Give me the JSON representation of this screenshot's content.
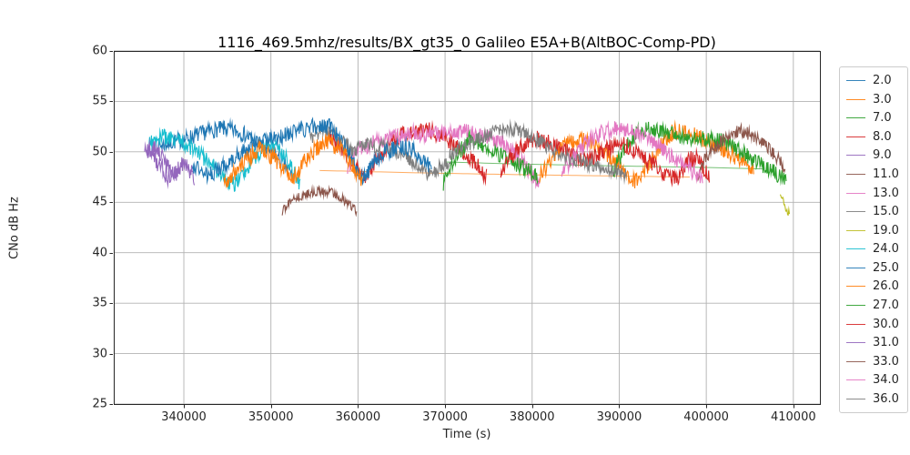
{
  "chart_data": {
    "type": "line",
    "title": "1116_469.5mhz/results/BX_gt35_0 Galileo E5A+B(AltBOC-Comp-PD)",
    "xlabel": "Time (s)",
    "ylabel": "CNo dB Hz",
    "xlim": [
      331950,
      413050
    ],
    "ylim": [
      25,
      60
    ],
    "xticks": [
      340000,
      350000,
      360000,
      370000,
      380000,
      390000,
      400000,
      410000
    ],
    "yticks": [
      25,
      30,
      35,
      40,
      45,
      50,
      55,
      60
    ],
    "grid": true,
    "grid_color": "#b2b2b2",
    "axis_color": "#262626",
    "legend_position": "outside-right",
    "series": [
      {
        "name": "2.0",
        "color": "#1f77b4",
        "style": "noisy",
        "noise": 0.8,
        "segments": [
          [
            [
              337000,
              50.6
            ],
            [
              338800,
              51.2
            ],
            [
              340800,
              51.6
            ],
            [
              342800,
              51.9
            ],
            [
              344800,
              52.1
            ],
            [
              346800,
              51.8
            ],
            [
              348600,
              51.1
            ],
            [
              350300,
              50.0
            ],
            [
              351700,
              48.6
            ],
            [
              352700,
              47.3
            ]
          ]
        ]
      },
      {
        "name": "3.0",
        "color": "#ff7f0e",
        "style": "smooth",
        "noise": 0.0,
        "segments": [
          [
            [
              355600,
              48.15
            ],
            [
              368000,
              47.9
            ],
            [
              380000,
              47.72
            ],
            [
              390000,
              47.6
            ],
            [
              398500,
              47.5
            ]
          ]
        ]
      },
      {
        "name": "7.0",
        "color": "#2ca02c",
        "style": "smooth",
        "noise": 0.0,
        "segments": [
          [
            [
              370000,
              49.0
            ],
            [
              378000,
              48.8
            ],
            [
              390000,
              48.6
            ],
            [
              400000,
              48.45
            ],
            [
              406800,
              48.3
            ]
          ]
        ]
      },
      {
        "name": "8.0",
        "color": "#d62728",
        "style": "noisy",
        "noise": 0.8,
        "segments": [
          [
            [
              356500,
              51.4
            ],
            [
              358300,
              50.2
            ],
            [
              359900,
              48.4
            ],
            [
              360700,
              47.3
            ],
            [
              362000,
              49.4
            ],
            [
              364000,
              51.1
            ],
            [
              366000,
              51.9
            ],
            [
              368000,
              52.1
            ],
            [
              370000,
              51.5
            ],
            [
              372000,
              50.3
            ],
            [
              373600,
              48.8
            ],
            [
              374800,
              47.4
            ]
          ]
        ]
      },
      {
        "name": "9.0",
        "color": "#9467bd",
        "style": "noisy",
        "noise": 0.95,
        "segments": [
          [
            [
              335500,
              50.3
            ],
            [
              336300,
              49.8
            ],
            [
              337200,
              48.9
            ],
            [
              338000,
              47.9
            ],
            [
              338700,
              47.5
            ],
            [
              339500,
              48.6
            ],
            [
              340100,
              48.9
            ],
            [
              340800,
              47.9
            ],
            [
              341300,
              47.4
            ]
          ]
        ]
      },
      {
        "name": "11.0",
        "color": "#8c564b",
        "style": "noisy",
        "noise": 0.45,
        "segments": [
          [
            [
              351300,
              43.9
            ],
            [
              352300,
              45.1
            ],
            [
              353800,
              45.8
            ],
            [
              355300,
              46.3
            ],
            [
              356800,
              46.2
            ],
            [
              358100,
              45.5
            ],
            [
              359200,
              44.5
            ],
            [
              359900,
              43.9
            ]
          ]
        ]
      },
      {
        "name": "13.0",
        "color": "#e377c2",
        "style": "noisy",
        "noise": 0.8,
        "segments": [
          [
            [
              358800,
              48.3
            ],
            [
              360000,
              50.1
            ],
            [
              362000,
              51.2
            ],
            [
              364000,
              51.7
            ],
            [
              366000,
              51.9
            ],
            [
              368000,
              51.4
            ],
            [
              370000,
              51.7
            ],
            [
              372200,
              52.2
            ],
            [
              374200,
              51.8
            ],
            [
              376200,
              51.0
            ],
            [
              377800,
              49.8
            ],
            [
              379300,
              48.3
            ],
            [
              380900,
              46.9
            ]
          ]
        ]
      },
      {
        "name": "15.0",
        "color": "#7f7f7f",
        "style": "noisy",
        "noise": 0.7,
        "segments": [
          [
            [
              354500,
              51.2
            ],
            [
              356000,
              51.9
            ],
            [
              357800,
              51.4
            ],
            [
              359500,
              50.3
            ],
            [
              361200,
              50.9
            ],
            [
              363000,
              50.5
            ],
            [
              364800,
              49.7
            ],
            [
              366500,
              48.6
            ],
            [
              368200,
              47.8
            ],
            [
              369600,
              48.8
            ],
            [
              370800,
              49.5
            ]
          ]
        ]
      },
      {
        "name": "19.0",
        "color": "#bcbd22",
        "style": "noisy",
        "noise": 0.5,
        "segments": [
          [
            [
              408500,
              45.8
            ],
            [
              408900,
              45.3
            ],
            [
              409300,
              44.3
            ],
            [
              409600,
              43.7
            ]
          ]
        ]
      },
      {
        "name": "24.0",
        "color": "#17becf",
        "style": "noisy",
        "noise": 0.8,
        "segments": [
          [
            [
              336000,
              50.9
            ],
            [
              337600,
              51.5
            ],
            [
              339200,
              51.1
            ],
            [
              341200,
              50.1
            ],
            [
              343200,
              48.8
            ],
            [
              344800,
              47.5
            ],
            [
              345800,
              47.0
            ],
            [
              347000,
              48.2
            ],
            [
              348600,
              49.8
            ],
            [
              350000,
              50.5
            ],
            [
              351300,
              49.8
            ],
            [
              352400,
              48.3
            ],
            [
              353400,
              46.9
            ]
          ]
        ]
      },
      {
        "name": "25.0",
        "color": "#1f77b4",
        "style": "noisy",
        "noise": 0.8,
        "segments": [
          [
            [
              341000,
              48.9
            ],
            [
              343000,
              47.9
            ],
            [
              345000,
              48.8
            ],
            [
              347500,
              50.2
            ],
            [
              350000,
              51.3
            ],
            [
              352500,
              52.1
            ],
            [
              355000,
              52.6
            ],
            [
              356800,
              52.3
            ],
            [
              358300,
              50.8
            ],
            [
              359800,
              48.2
            ],
            [
              360600,
              47.3
            ],
            [
              361800,
              49.0
            ],
            [
              363200,
              50.2
            ],
            [
              364800,
              50.6
            ],
            [
              366300,
              50.0
            ],
            [
              367500,
              49.0
            ],
            [
              368500,
              48.1
            ]
          ]
        ]
      },
      {
        "name": "26.0",
        "color": "#ff7f0e",
        "style": "noisy",
        "noise": 0.85,
        "segments": [
          [
            [
              344600,
              46.4
            ],
            [
              345600,
              47.6
            ],
            [
              347000,
              49.2
            ],
            [
              348800,
              50.4
            ],
            [
              350400,
              49.6
            ],
            [
              351600,
              48.3
            ],
            [
              352600,
              47.2
            ],
            [
              353800,
              48.8
            ],
            [
              355200,
              50.1
            ],
            [
              356600,
              51.0
            ],
            [
              358000,
              50.3
            ],
            [
              359300,
              48.9
            ],
            [
              360500,
              47.4
            ]
          ],
          [
            [
              380800,
              47.6
            ],
            [
              382300,
              49.3
            ],
            [
              384000,
              50.6
            ],
            [
              386000,
              51.2
            ],
            [
              388000,
              50.4
            ],
            [
              389800,
              49.2
            ],
            [
              391300,
              47.6
            ],
            [
              392300,
              46.9
            ],
            [
              393300,
              48.6
            ],
            [
              394800,
              50.6
            ],
            [
              396300,
              51.9
            ],
            [
              398000,
              52.0
            ],
            [
              399800,
              51.4
            ],
            [
              401200,
              50.8
            ],
            [
              402300,
              50.2
            ],
            [
              403500,
              49.3
            ],
            [
              404500,
              48.6
            ],
            [
              405500,
              47.8
            ]
          ]
        ]
      },
      {
        "name": "27.0",
        "color": "#2ca02c",
        "style": "noisy",
        "noise": 0.8,
        "segments": [
          [
            [
              369800,
              46.9
            ],
            [
              371200,
              49.2
            ],
            [
              372800,
              51.1
            ],
            [
              374500,
              50.6
            ],
            [
              376500,
              49.8
            ],
            [
              378500,
              48.8
            ],
            [
              380700,
              47.4
            ]
          ],
          [
            [
              389300,
              48.0
            ],
            [
              390500,
              50.0
            ],
            [
              392000,
              51.6
            ],
            [
              393800,
              52.2
            ],
            [
              395500,
              52.1
            ],
            [
              397200,
              51.6
            ],
            [
              399000,
              51.3
            ],
            [
              400800,
              51.2
            ],
            [
              402200,
              50.7
            ],
            [
              403800,
              50.0
            ],
            [
              405400,
              49.3
            ],
            [
              407000,
              48.6
            ],
            [
              408300,
              47.9
            ],
            [
              409200,
              47.3
            ]
          ]
        ]
      },
      {
        "name": "30.0",
        "color": "#d62728",
        "style": "noisy",
        "noise": 0.8,
        "segments": [
          [
            [
              376400,
              48.3
            ],
            [
              378400,
              50.1
            ],
            [
              380400,
              51.2
            ],
            [
              382400,
              50.9
            ],
            [
              384400,
              50.1
            ],
            [
              386400,
              49.2
            ],
            [
              388400,
              50.0
            ],
            [
              390200,
              50.7
            ],
            [
              391800,
              50.1
            ],
            [
              393400,
              49.2
            ],
            [
              394600,
              48.5
            ],
            [
              396000,
              47.6
            ],
            [
              396800,
              47.2
            ],
            [
              397800,
              49.0
            ],
            [
              398800,
              49.3
            ],
            [
              399800,
              48.0
            ],
            [
              400400,
              47.2
            ]
          ]
        ]
      },
      {
        "name": "31.0",
        "color": "#9467bd",
        "style": "noisy",
        "noise": 0.9,
        "segments": [
          [
            [
              335700,
              49.9
            ],
            [
              336500,
              50.3
            ],
            [
              337400,
              49.4
            ],
            [
              338200,
              48.4
            ],
            [
              338900,
              47.7
            ]
          ]
        ]
      },
      {
        "name": "33.0",
        "color": "#8c564b",
        "style": "noisy",
        "noise": 0.7,
        "segments": [
          [
            [
              398900,
              47.9
            ],
            [
              400000,
              49.6
            ],
            [
              401300,
              50.9
            ],
            [
              402600,
              51.6
            ],
            [
              404100,
              51.8
            ],
            [
              405600,
              51.4
            ],
            [
              407000,
              50.6
            ],
            [
              408100,
              49.6
            ],
            [
              409100,
              48.4
            ]
          ]
        ]
      },
      {
        "name": "34.0",
        "color": "#e377c2",
        "style": "noisy",
        "noise": 0.8,
        "segments": [
          [
            [
              383400,
              47.8
            ],
            [
              384800,
              49.6
            ],
            [
              386300,
              51.2
            ],
            [
              388000,
              52.0
            ],
            [
              390000,
              52.2
            ],
            [
              392000,
              51.7
            ],
            [
              393800,
              51.0
            ],
            [
              395300,
              50.2
            ],
            [
              396800,
              49.3
            ],
            [
              398200,
              48.3
            ],
            [
              399600,
              47.2
            ]
          ]
        ]
      },
      {
        "name": "36.0",
        "color": "#7f7f7f",
        "style": "noisy",
        "noise": 0.7,
        "segments": [
          [
            [
              370500,
              49.7
            ],
            [
              372300,
              50.8
            ],
            [
              374300,
              51.7
            ],
            [
              376300,
              52.2
            ],
            [
              378300,
              51.9
            ],
            [
              380300,
              51.3
            ],
            [
              382300,
              50.4
            ],
            [
              384300,
              49.5
            ],
            [
              386300,
              48.8
            ],
            [
              388300,
              48.3
            ],
            [
              390000,
              47.9
            ],
            [
              390800,
              47.7
            ]
          ]
        ]
      }
    ]
  }
}
